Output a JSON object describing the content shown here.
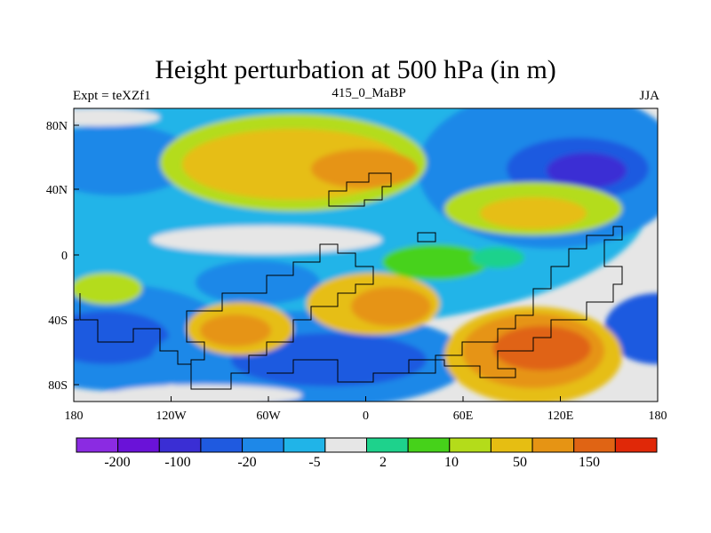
{
  "chart_data": {
    "type": "heatmap",
    "title": "Height perturbation at 500 hPa (in m)",
    "subtitle_left": "Expt = teXZf1",
    "subtitle_center": "415_0_MaBP",
    "subtitle_right": "JJA",
    "x_ticks": [
      "180",
      "120W",
      "60W",
      "0",
      "60E",
      "120E",
      "180"
    ],
    "y_ticks": [
      "80N",
      "40N",
      "0",
      "40S",
      "80S"
    ],
    "colorbar_labels": [
      "-200",
      "-100",
      "-20",
      "-5",
      "2",
      "10",
      "50",
      "150"
    ],
    "colorbar_colors": [
      "#8b2be2",
      "#6a12d8",
      "#3a2ed4",
      "#1f5ae0",
      "#1e88e8",
      "#20b4e8",
      "#e6e6e6",
      "#1ed28c",
      "#46d21a",
      "#b4dc1a",
      "#e6be12",
      "#e69414",
      "#e06414",
      "#e02808"
    ],
    "ocean_color": "#e6e6e6",
    "line_color": "#000000",
    "description": "Global 500 hPa height perturbation field for JJA with coastline overlay"
  }
}
